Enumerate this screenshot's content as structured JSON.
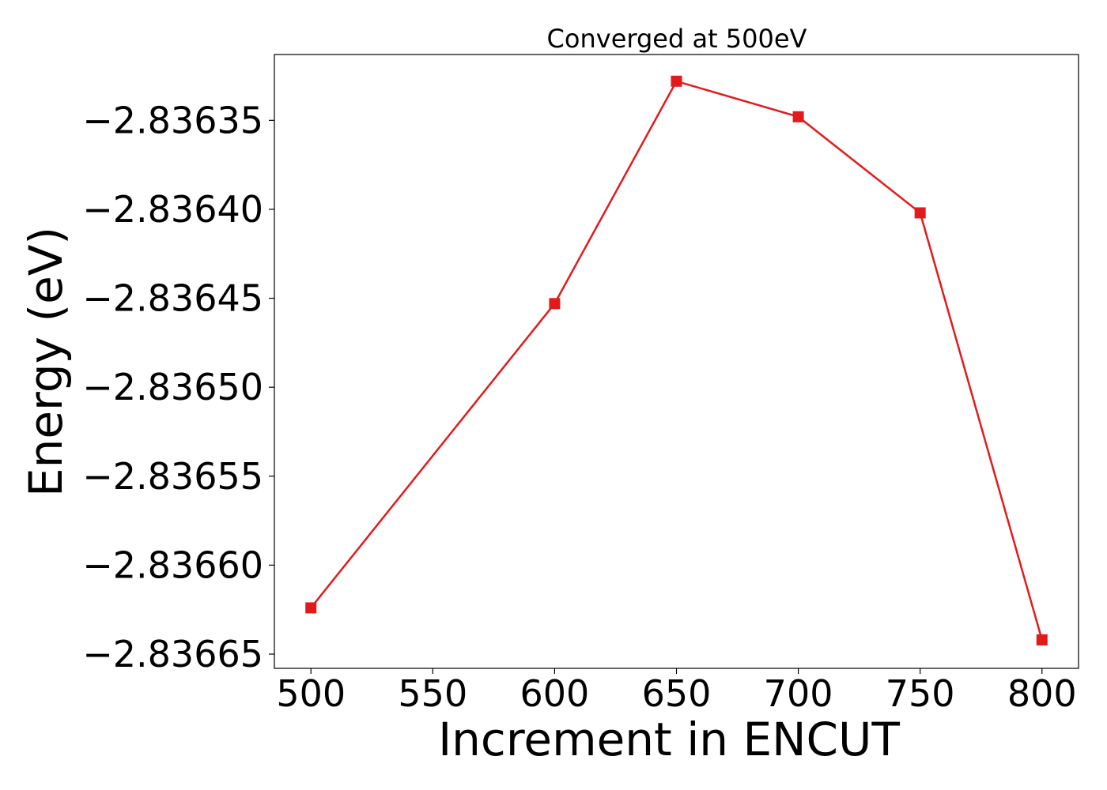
{
  "chart_data": {
    "type": "line",
    "title": "Converged at 500eV",
    "xlabel": "Increment in ENCUT",
    "ylabel": "Energy (eV)",
    "x": [
      500,
      600,
      650,
      700,
      750,
      800
    ],
    "series": [
      {
        "values": [
          -2.836624,
          -2.836453,
          -2.836328,
          -2.836348,
          -2.836402,
          -2.836642
        ],
        "color": "#e31a1c",
        "marker": "square"
      }
    ],
    "xlim": [
      485,
      815
    ],
    "ylim": [
      -2.836658,
      -2.836313
    ],
    "xticks": [
      500,
      550,
      600,
      650,
      700,
      750,
      800
    ],
    "xtick_labels": [
      "500",
      "550",
      "600",
      "650",
      "700",
      "750",
      "800"
    ],
    "yticks": [
      -2.83635,
      -2.8364,
      -2.83645,
      -2.8365,
      -2.83655,
      -2.8366,
      -2.83665
    ],
    "ytick_labels": [
      "−2.83635",
      "−2.83640",
      "−2.83645",
      "−2.83650",
      "−2.83655",
      "−2.83660",
      "−2.83665"
    ],
    "grid": false,
    "legend": "none"
  }
}
